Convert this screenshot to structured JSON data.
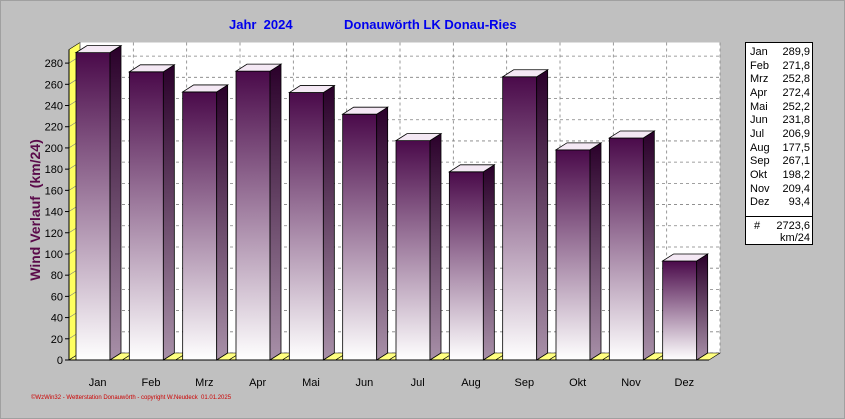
{
  "title_left": "Jahr  2024",
  "title_right": "Donauwörth LK Donau-Ries",
  "ylabel": "Wind Verlauf  (km/24)",
  "footer": "©WzWin32 - Wetterstation Donauwörth - copyright W.Neudeck  01.01.2025",
  "legend": {
    "entries": [
      {
        "month": "Jan",
        "value": "289,9"
      },
      {
        "month": "Feb",
        "value": "271,8"
      },
      {
        "month": "Mrz",
        "value": "252,8"
      },
      {
        "month": "Apr",
        "value": "272,4"
      },
      {
        "month": "Mai",
        "value": "252,2"
      },
      {
        "month": "Jun",
        "value": "231,8"
      },
      {
        "month": "Jul",
        "value": "206,9"
      },
      {
        "month": "Aug",
        "value": "177,5"
      },
      {
        "month": "Sep",
        "value": "267,1"
      },
      {
        "month": "Okt",
        "value": "198,2"
      },
      {
        "month": "Nov",
        "value": "209,4"
      },
      {
        "month": "Dez",
        "value": "93,4"
      }
    ],
    "total_mark": "#",
    "total_value": "2723,6",
    "total_unit": "km/24"
  },
  "chart_data": {
    "type": "bar",
    "categories": [
      "Jan",
      "Feb",
      "Mrz",
      "Apr",
      "Mai",
      "Jun",
      "Jul",
      "Aug",
      "Sep",
      "Okt",
      "Nov",
      "Dez"
    ],
    "values": [
      289.9,
      271.8,
      252.8,
      272.4,
      252.2,
      231.8,
      206.9,
      177.5,
      267.1,
      198.2,
      209.4,
      93.4
    ],
    "ylabel": "Wind Verlauf  (km/24)",
    "ylim": [
      0,
      290
    ],
    "yticks": [
      0,
      20,
      40,
      60,
      80,
      100,
      120,
      140,
      160,
      180,
      200,
      220,
      240,
      260,
      280
    ],
    "grid": true,
    "legend_position": "right",
    "bar_color_top": "#4a0a4a",
    "bar_color_bottom": "#ffffff",
    "floor_color": "#ffff80",
    "plot_background": "#ffffff"
  }
}
